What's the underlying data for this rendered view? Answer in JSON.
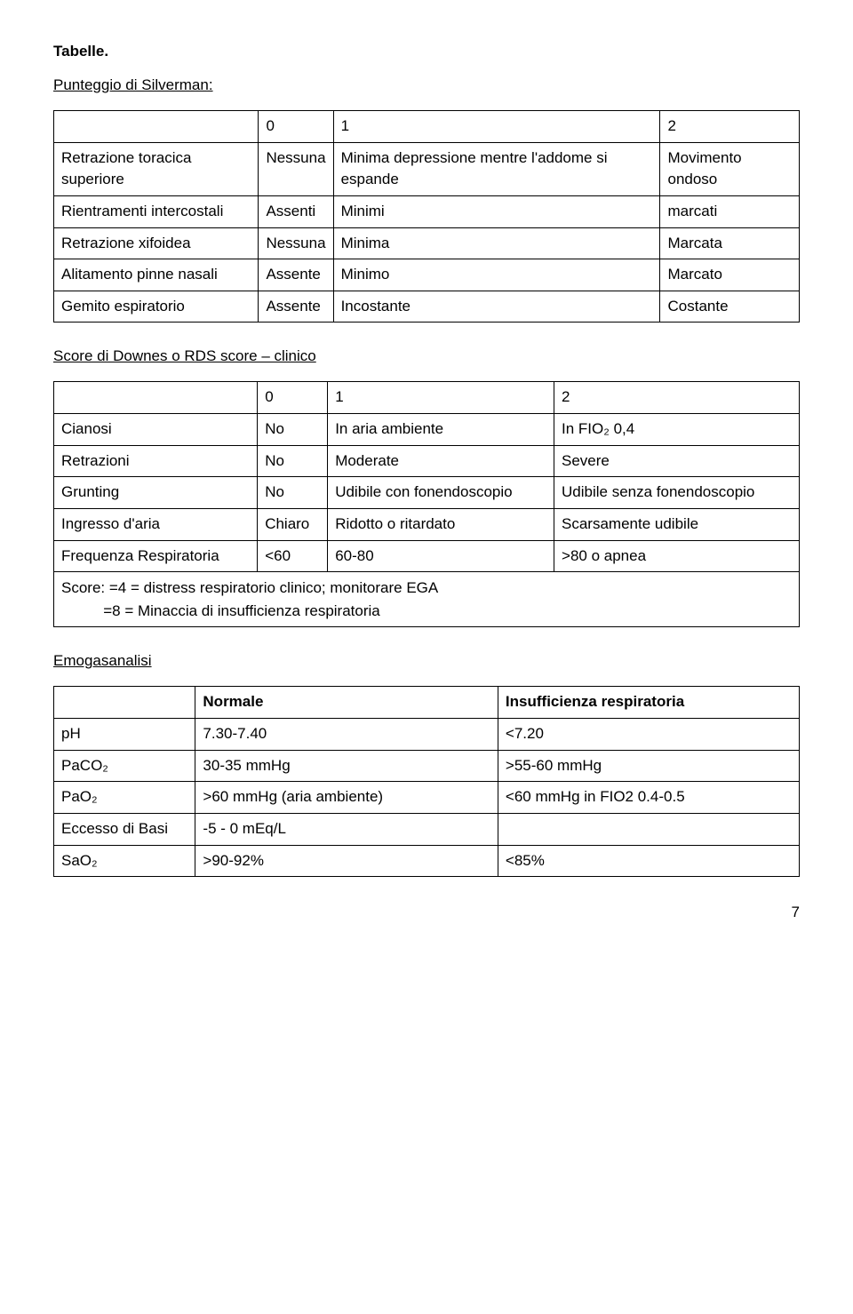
{
  "headings": {
    "tabelle": "Tabelle.",
    "silverman": "Punteggio di Silverman:",
    "downes": "Score di Downes o RDS score – clinico",
    "emo": "Emogasanalisi"
  },
  "t1": {
    "h": [
      "0",
      "1",
      "2"
    ],
    "r": [
      [
        "Retrazione toracica superiore",
        "Nessuna",
        "Minima depressione mentre l'addome si espande",
        "Movimento ondoso"
      ],
      [
        "Rientramenti intercostali",
        "Assenti",
        "Minimi",
        "marcati"
      ],
      [
        "Retrazione xifoidea",
        "Nessuna",
        "Minima",
        "Marcata"
      ],
      [
        "Alitamento pinne nasali",
        "Assente",
        "Minimo",
        "Marcato"
      ],
      [
        "Gemito espiratorio",
        "Assente",
        "Incostante",
        "Costante"
      ]
    ]
  },
  "t2": {
    "h": [
      "0",
      "1",
      "2"
    ],
    "r": [
      [
        "Cianosi",
        "No",
        "In aria ambiente",
        "In FIO₂ 0,4"
      ],
      [
        "Retrazioni",
        "No",
        "Moderate",
        "Severe"
      ],
      [
        "Grunting",
        "No",
        "Udibile con fonendoscopio",
        "Udibile senza fonendoscopio"
      ],
      [
        "Ingresso d'aria",
        "Chiaro",
        "Ridotto o ritardato",
        "Scarsamente udibile"
      ],
      [
        "Frequenza Respiratoria",
        "<60",
        "60-80",
        ">80 o apnea"
      ]
    ],
    "note1": "Score: =4 = distress respiratorio clinico; monitorare EGA",
    "note2": "=8 = Minaccia di insufficienza respiratoria"
  },
  "t3": {
    "h": [
      "Normale",
      "Insufficienza respiratoria"
    ],
    "r": [
      [
        "pH",
        "7.30-7.40",
        "<7.20"
      ],
      [
        "PaCO₂",
        "30-35 mmHg",
        ">55-60 mmHg"
      ],
      [
        "PaO₂",
        ">60 mmHg (aria ambiente)",
        "<60 mmHg in FIO2 0.4-0.5"
      ],
      [
        "Eccesso di Basi",
        "-5 - 0 mEq/L",
        ""
      ],
      [
        "SaO₂",
        ">90-92%",
        "<85%"
      ]
    ]
  },
  "pagenum": "7"
}
